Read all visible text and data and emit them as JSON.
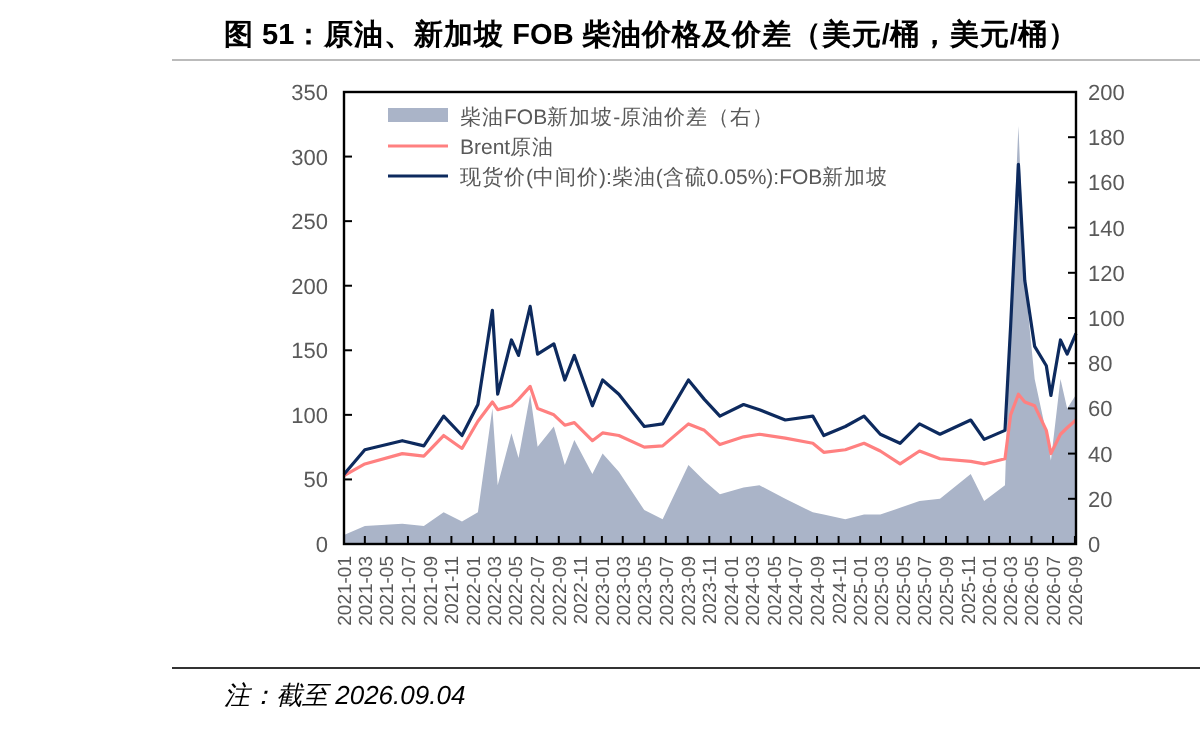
{
  "chart_data": {
    "type": "line",
    "title": "图 51：原油、新加坡 FOB 柴油价格及价差（美元/桶，美元/桶）",
    "annotations": [
      "注：截至 2026.09.04"
    ],
    "x": [
      "2021-01-01",
      "2021-03-01",
      "2021-06-15",
      "2021-08-15",
      "2021-10-10",
      "2021-12-01",
      "2022-01-15",
      "2022-02-25",
      "2022-03-12",
      "2022-04-20",
      "2022-05-10",
      "2022-06-12",
      "2022-07-03",
      "2022-08-18",
      "2022-09-18",
      "2022-10-15",
      "2022-12-05",
      "2023-01-03",
      "2023-02-18",
      "2023-05-01",
      "2023-06-22",
      "2023-09-03",
      "2023-10-18",
      "2023-12-01",
      "2024-02-06",
      "2024-03-22",
      "2024-06-03",
      "2024-08-20",
      "2024-09-20",
      "2024-11-20",
      "2025-01-12",
      "2025-02-27",
      "2025-04-24",
      "2025-06-18",
      "2025-08-15",
      "2025-11-10",
      "2025-12-18",
      "2026-02-15",
      "2026-03-03",
      "2026-03-25",
      "2026-04-12",
      "2026-05-10",
      "2026-06-12",
      "2026-06-25",
      "2026-07-22",
      "2026-08-10",
      "2026-09-04"
    ],
    "series": [
      {
        "name": "柴油FOB新加坡-原油价差（右）",
        "type": "area",
        "axis": "y2",
        "color": "#aab4c8",
        "values": [
          4,
          8,
          9,
          8,
          14,
          10,
          14,
          60,
          26,
          49,
          38,
          66,
          43,
          52,
          35,
          46,
          31,
          40,
          32,
          15,
          11,
          35,
          28,
          22,
          25,
          26,
          20,
          14,
          13,
          11,
          13,
          13,
          16,
          19,
          20,
          31,
          19,
          26,
          105,
          185,
          117,
          73,
          49,
          37,
          73,
          60,
          66
        ]
      },
      {
        "name": "Brent原油",
        "color": "#ff8080",
        "values": [
          53,
          62,
          70,
          68,
          84,
          74,
          95,
          110,
          104,
          107,
          112,
          122,
          105,
          100,
          92,
          94,
          80,
          86,
          84,
          75,
          76,
          93,
          88,
          77,
          83,
          85,
          82,
          78,
          71,
          73,
          78,
          72,
          62,
          72,
          66,
          64,
          62,
          66,
          100,
          116,
          110,
          107,
          88,
          70,
          85,
          90,
          96
        ]
      },
      {
        "name": "现货价(中间价):柴油(含硫0.05%):FOB新加坡",
        "color": "#0d2a5e",
        "values": [
          54,
          73,
          80,
          76,
          99,
          84,
          108,
          181,
          116,
          158,
          146,
          184,
          147,
          155,
          127,
          146,
          107,
          127,
          116,
          91,
          93,
          127,
          112,
          99,
          108,
          104,
          96,
          99,
          84,
          91,
          99,
          85,
          78,
          93,
          85,
          96,
          81,
          88,
          169,
          294,
          204,
          153,
          138,
          115,
          158,
          147,
          163
        ]
      }
    ],
    "xlim": [
      "2021-01-01",
      "2026-09-04"
    ],
    "xticks": [
      "2021-01",
      "2021-03",
      "2021-05",
      "2021-07",
      "2021-09",
      "2021-11",
      "2022-01",
      "2022-03",
      "2022-05",
      "2022-07",
      "2022-09",
      "2022-11",
      "2023-01",
      "2023-03",
      "2023-05",
      "2023-07",
      "2023-09",
      "2023-11",
      "2024-01",
      "2024-03",
      "2024-05",
      "2024-07",
      "2024-09",
      "2024-11",
      "2025-01",
      "2025-03",
      "2025-05",
      "2025-07",
      "2025-09",
      "2025-11",
      "2026-01",
      "2026-03",
      "2026-05",
      "2026-07",
      "2026-09"
    ],
    "ylim": [
      0,
      350
    ],
    "yticks": [
      0,
      50,
      100,
      150,
      200,
      250,
      300,
      350
    ],
    "y2lim": [
      0,
      200
    ],
    "y2ticks": [
      0,
      20,
      40,
      60,
      80,
      100,
      120,
      140,
      160,
      180,
      200
    ],
    "legend": "top left"
  }
}
